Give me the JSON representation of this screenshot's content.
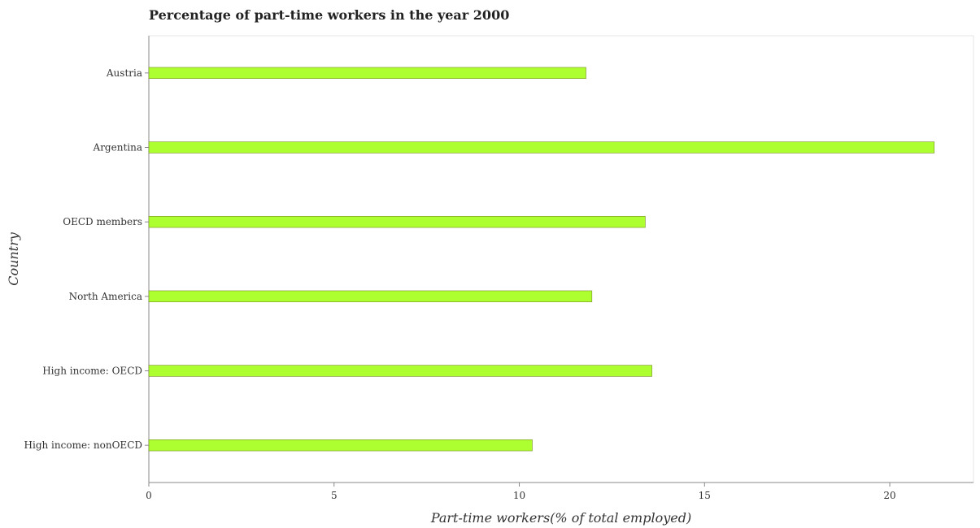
{
  "chart_data": {
    "type": "bar",
    "orientation": "horizontal",
    "title": "Percentage of part-time workers in the year 2000",
    "xlabel": "Part-time workers(% of total employed)",
    "ylabel": "Country",
    "categories": [
      "High income: nonOECD",
      "High income: OECD",
      "North America",
      "OECD members",
      "Argentina",
      "Austria"
    ],
    "values": [
      10.35,
      13.58,
      11.96,
      13.4,
      21.2,
      11.8
    ],
    "xlim": [
      0,
      22.26
    ],
    "xticks": [
      0,
      5,
      10,
      15,
      20
    ],
    "xtick_labels": [
      "0",
      "5",
      "10",
      "15",
      "20"
    ],
    "grid": false,
    "bar_color": "#adff2f"
  }
}
